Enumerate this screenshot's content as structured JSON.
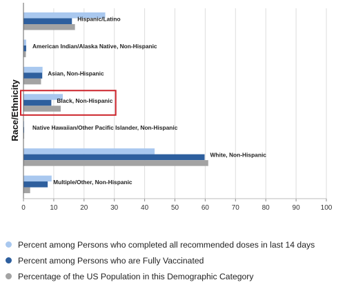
{
  "chart_data": {
    "type": "bar",
    "orientation": "horizontal",
    "title": "",
    "xlabel": "",
    "ylabel": "Race/Ethnicity",
    "xlim": [
      0,
      100
    ],
    "xticks": [
      0,
      10,
      20,
      30,
      40,
      50,
      60,
      70,
      80,
      90,
      100
    ],
    "grid": true,
    "legend_position": "bottom",
    "categories": [
      "Hispanic/Latino",
      "American Indian/Alaska Native, Non-Hispanic",
      "Asian, Non-Hispanic",
      "Black, Non-Hispanic",
      "Native Hawaiian/Other Pacific Islander, Non-Hispanic",
      "White, Non-Hispanic",
      "Multiple/Other, Non-Hispanic"
    ],
    "series": [
      {
        "name": "Percent among Persons who completed all recommended doses in last 14 days",
        "color": "#a9c8ef",
        "values": [
          27,
          0.9,
          6.3,
          13,
          0.2,
          43.3,
          9.3
        ]
      },
      {
        "name": "Percent among Persons who are Fully Vaccinated",
        "color": "#2e5f9e",
        "values": [
          16,
          0.9,
          6.2,
          9.2,
          0.2,
          59.8,
          8
        ]
      },
      {
        "name": "Percentage of the US Population in this Demographic Category",
        "color": "#a3a3a3",
        "values": [
          17,
          0.8,
          5.8,
          12.3,
          0.2,
          61,
          2.2
        ]
      }
    ],
    "highlight": {
      "category": "Black, Non-Hispanic",
      "color": "#cc2229"
    }
  }
}
